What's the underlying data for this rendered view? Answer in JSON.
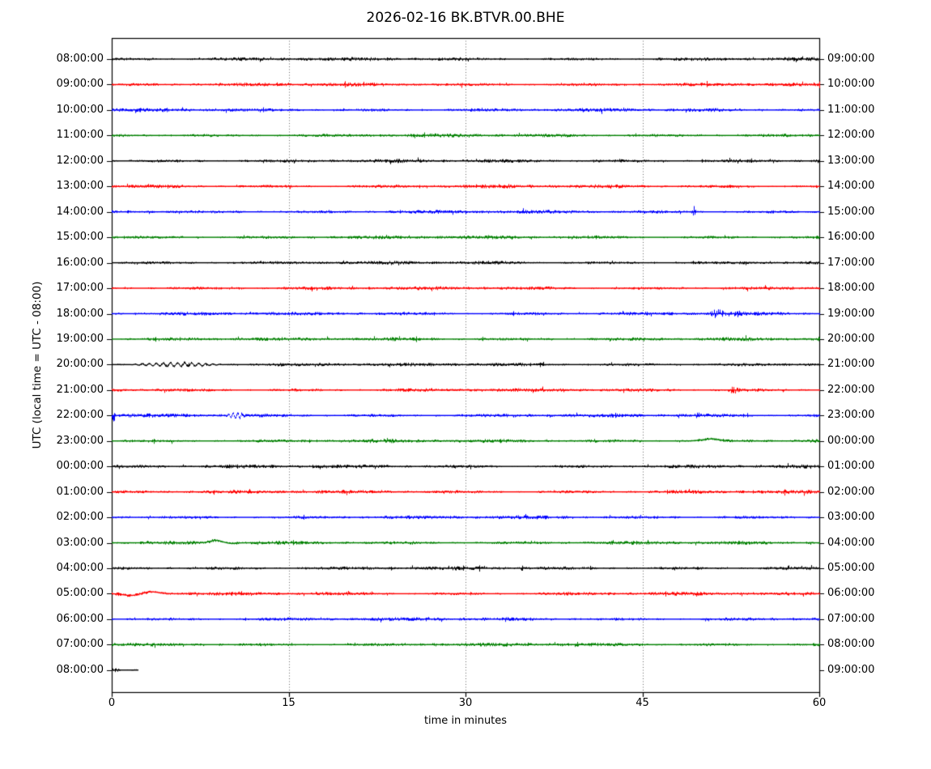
{
  "chart_data": {
    "type": "line",
    "subtype": "helicorder-dayplot",
    "title": "2026-02-16 BK.BTVR.00.BHE",
    "date": "2026-02-16",
    "station_id": "BK.BTVR.00.BHE",
    "xlabel": "time in minutes",
    "ylabel": "UTC (local time = UTC - 08:00)",
    "xlim": [
      0,
      60
    ],
    "x_ticks": [
      0,
      15,
      30,
      45,
      60
    ],
    "x_gridlines": [
      15,
      30,
      45
    ],
    "grid_style": "dotted",
    "minutes_per_line": 60,
    "colors_cycle": [
      "#000000",
      "#ff0000",
      "#0000ff",
      "#008000"
    ],
    "rows": [
      {
        "utc": "08:00:00",
        "right": "09:00:00",
        "color": "#000000",
        "events": []
      },
      {
        "utc": "09:00:00",
        "right": "10:00:00",
        "color": "#ff0000",
        "events": []
      },
      {
        "utc": "10:00:00",
        "right": "11:00:00",
        "color": "#0000ff",
        "events": []
      },
      {
        "utc": "11:00:00",
        "right": "12:00:00",
        "color": "#008000",
        "events": []
      },
      {
        "utc": "12:00:00",
        "right": "13:00:00",
        "color": "#000000",
        "events": []
      },
      {
        "utc": "13:00:00",
        "right": "14:00:00",
        "color": "#ff0000",
        "events": []
      },
      {
        "utc": "14:00:00",
        "right": "15:00:00",
        "color": "#0000ff",
        "events": [
          {
            "type": "spike",
            "t": 49.3,
            "amp": 9,
            "width": 0.15
          }
        ]
      },
      {
        "utc": "15:00:00",
        "right": "16:00:00",
        "color": "#008000",
        "events": []
      },
      {
        "utc": "16:00:00",
        "right": "17:00:00",
        "color": "#000000",
        "events": []
      },
      {
        "utc": "17:00:00",
        "right": "18:00:00",
        "color": "#ff0000",
        "events": []
      },
      {
        "utc": "18:00:00",
        "right": "19:00:00",
        "color": "#0000ff",
        "events": [
          {
            "type": "burst",
            "t": 51.4,
            "amp": 4.5,
            "width": 0.5
          },
          {
            "type": "burst",
            "t": 53.1,
            "amp": 2.0,
            "width": 0.35
          }
        ]
      },
      {
        "utc": "19:00:00",
        "right": "20:00:00",
        "color": "#008000",
        "events": []
      },
      {
        "utc": "20:00:00",
        "right": "21:00:00",
        "color": "#000000",
        "events": [
          {
            "type": "wiggle",
            "t": 1.5,
            "t2": 9.5,
            "amp": 2.2,
            "period": 0.6
          }
        ]
      },
      {
        "utc": "21:00:00",
        "right": "22:00:00",
        "color": "#ff0000",
        "events": [
          {
            "type": "burst",
            "t": 52.7,
            "amp": 3.2,
            "width": 0.4
          }
        ]
      },
      {
        "utc": "22:00:00",
        "right": "23:00:00",
        "color": "#0000ff",
        "events": [
          {
            "type": "spike",
            "t": 0.15,
            "amp": 7,
            "width": 0.12
          },
          {
            "type": "burst",
            "t": 6.2,
            "amp": 1.2,
            "width": 0.3
          },
          {
            "type": "wiggle",
            "t": 9.6,
            "t2": 11.4,
            "amp": 3.2,
            "period": 0.38
          }
        ]
      },
      {
        "utc": "23:00:00",
        "right": "00:00:00",
        "color": "#008000",
        "events": [
          {
            "type": "bump",
            "t": 50.8,
            "amp": 2.5,
            "width": 1.0
          }
        ]
      },
      {
        "utc": "00:00:00",
        "right": "01:00:00",
        "color": "#000000",
        "events": []
      },
      {
        "utc": "01:00:00",
        "right": "02:00:00",
        "color": "#ff0000",
        "events": []
      },
      {
        "utc": "02:00:00",
        "right": "03:00:00",
        "color": "#0000ff",
        "events": []
      },
      {
        "utc": "03:00:00",
        "right": "04:00:00",
        "color": "#008000",
        "events": [
          {
            "type": "bump",
            "t": 8.8,
            "amp": 3.0,
            "width": 0.7
          },
          {
            "type": "bump",
            "t": 10.1,
            "amp": -0.8,
            "width": 0.6
          }
        ]
      },
      {
        "utc": "04:00:00",
        "right": "05:00:00",
        "color": "#000000",
        "events": []
      },
      {
        "utc": "05:00:00",
        "right": "06:00:00",
        "color": "#ff0000",
        "events": [
          {
            "type": "bump",
            "t": 1.6,
            "amp": -2.2,
            "width": 0.9
          },
          {
            "type": "bump",
            "t": 3.3,
            "amp": 2.4,
            "width": 0.9
          }
        ]
      },
      {
        "utc": "06:00:00",
        "right": "07:00:00",
        "color": "#0000ff",
        "events": []
      },
      {
        "utc": "07:00:00",
        "right": "08:00:00",
        "color": "#008000",
        "events": []
      },
      {
        "utc": "08:00:00",
        "right": "09:00:00",
        "color": "#000000",
        "end_minute": 2.2,
        "events": [
          {
            "type": "spike",
            "t": 0.3,
            "amp": 2.2,
            "width": 0.3
          }
        ]
      }
    ]
  }
}
